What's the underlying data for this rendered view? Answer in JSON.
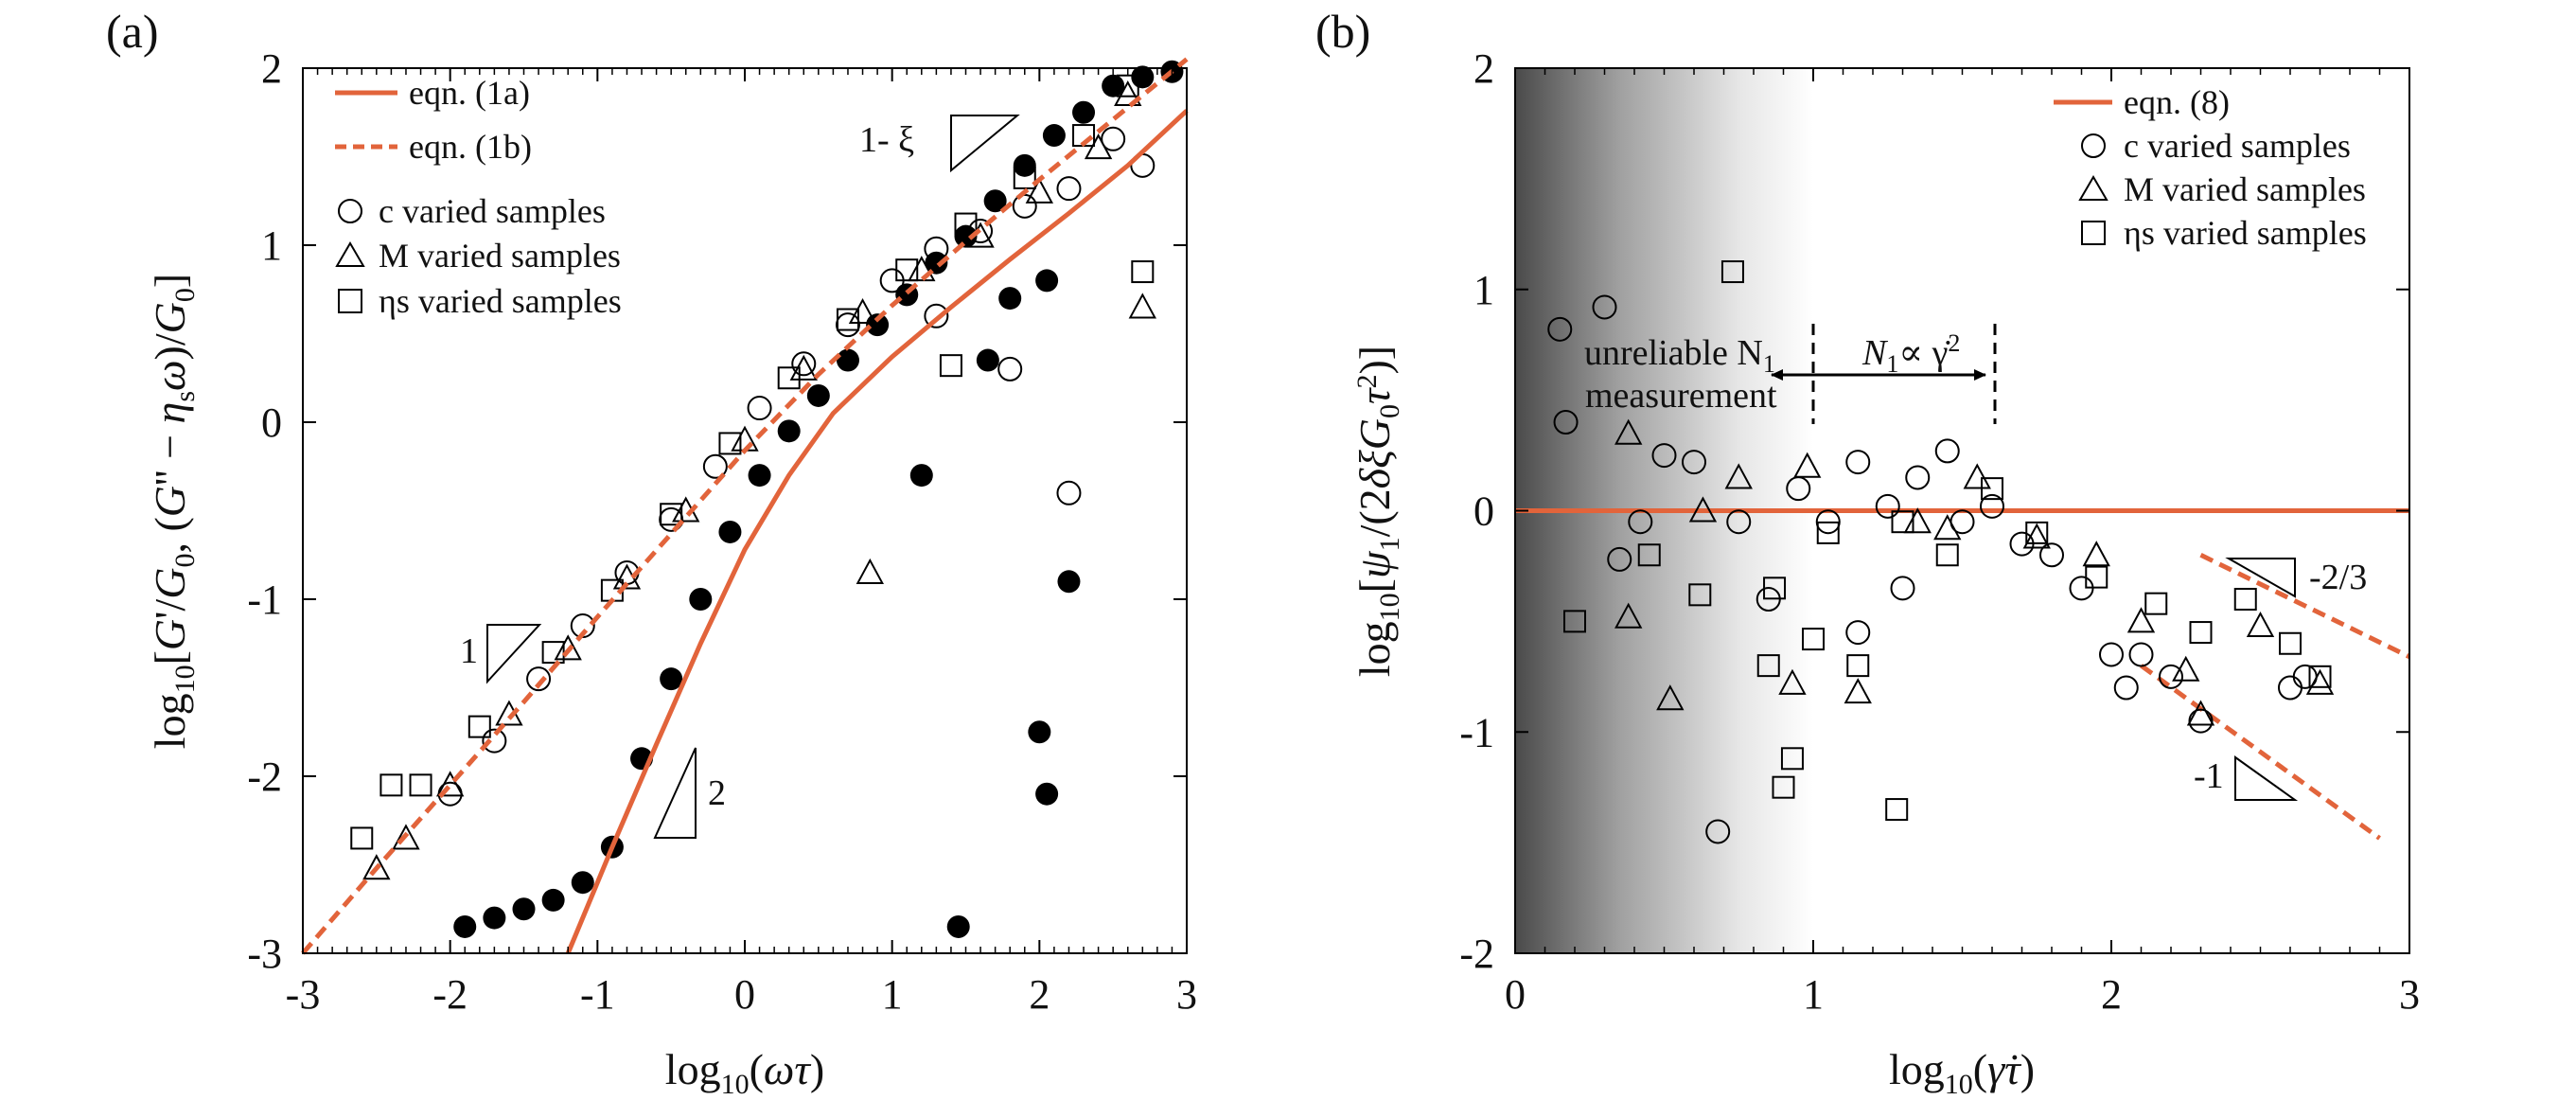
{
  "figure_labels": {
    "a": "(a)",
    "b": "(b)"
  },
  "colors": {
    "model": "#E2643B",
    "marker": "#000000",
    "background": "#ffffff"
  },
  "chart_data": [
    {
      "panel": "(a)",
      "type": "scatter",
      "title": "",
      "xlabel": "log10(ωτ)",
      "ylabel": "log10[G'/G0, (G'' − ηsω)/G0]",
      "xlim": [
        -3,
        3
      ],
      "ylim": [
        -3,
        2
      ],
      "xticks": [
        "-3",
        "-2",
        "-1",
        "0",
        "1",
        "2",
        "3"
      ],
      "yticks": [
        "-3",
        "-2",
        "-1",
        "0",
        "1",
        "2"
      ],
      "legend": {
        "placement": "top-left",
        "entries": [
          "eqn. (1a)",
          "eqn. (1b)",
          "c varied samples",
          "M varied samples",
          "ηs varied samples"
        ]
      },
      "annotations": {
        "slope_top": "1- ξ",
        "slope_one": "1",
        "slope_two": "2"
      },
      "series": [
        {
          "name": "eqn. (1a)",
          "kind": "model-line",
          "style": "solid",
          "x": [
            -1.2,
            -0.9,
            -0.6,
            -0.3,
            0.0,
            0.3,
            0.6,
            1.0,
            1.4,
            1.8,
            2.2,
            2.6,
            3.0
          ],
          "y": [
            -3.0,
            -2.4,
            -1.82,
            -1.25,
            -0.72,
            -0.3,
            0.05,
            0.37,
            0.65,
            0.92,
            1.18,
            1.45,
            1.76
          ]
        },
        {
          "name": "eqn. (1b)",
          "kind": "model-line",
          "style": "dashed",
          "x": [
            -3.0,
            -2.5,
            -2.0,
            -1.5,
            -1.0,
            -0.5,
            0.0,
            0.5,
            1.0,
            1.5,
            2.0,
            2.5,
            3.0
          ],
          "y": [
            -3.0,
            -2.52,
            -2.05,
            -1.58,
            -1.1,
            -0.63,
            -0.16,
            0.27,
            0.66,
            1.02,
            1.37,
            1.71,
            2.05
          ]
        },
        {
          "name": "c varied samples",
          "marker": "circle",
          "x": [
            -2.0,
            -1.7,
            -1.4,
            -1.1,
            -0.8,
            -0.5,
            -0.2,
            0.1,
            0.4,
            0.7,
            1.0,
            1.3,
            1.6,
            1.9,
            2.2,
            2.5,
            2.7,
            2.2,
            1.8,
            1.3
          ],
          "y": [
            -2.1,
            -1.8,
            -1.45,
            -1.15,
            -0.85,
            -0.55,
            -0.25,
            0.08,
            0.33,
            0.55,
            0.8,
            0.98,
            1.08,
            1.22,
            1.32,
            1.6,
            1.45,
            -0.4,
            0.3,
            0.6
          ]
        },
        {
          "name": "M varied samples",
          "marker": "triangle",
          "x": [
            -2.5,
            -2.3,
            -2.0,
            -1.6,
            -1.2,
            -0.8,
            -0.4,
            0.0,
            0.4,
            0.8,
            1.2,
            1.6,
            2.0,
            2.4,
            2.6,
            0.85,
            2.7
          ],
          "y": [
            -2.52,
            -2.35,
            -2.05,
            -1.65,
            -1.28,
            -0.88,
            -0.5,
            -0.1,
            0.3,
            0.62,
            0.86,
            1.05,
            1.3,
            1.55,
            1.85,
            -0.85,
            0.65
          ]
        },
        {
          "name": "ηs varied samples",
          "marker": "square",
          "x": [
            -2.6,
            -2.4,
            -2.2,
            -1.8,
            -1.3,
            -0.9,
            -0.5,
            -0.1,
            0.3,
            0.7,
            1.1,
            1.5,
            1.9,
            2.3,
            2.6,
            1.4,
            2.7
          ],
          "y": [
            -2.35,
            -2.05,
            -2.05,
            -1.72,
            -1.3,
            -0.95,
            -0.52,
            -0.12,
            0.25,
            0.58,
            0.86,
            1.12,
            1.38,
            1.62,
            1.9,
            0.32,
            0.85
          ]
        },
        {
          "name": "filled (G')",
          "marker": "filled",
          "x": [
            -1.9,
            -1.7,
            -1.5,
            -1.3,
            -1.1,
            -0.9,
            -0.7,
            -0.5,
            -0.3,
            -0.1,
            0.1,
            0.3,
            0.5,
            0.7,
            0.9,
            1.1,
            1.3,
            1.5,
            1.7,
            1.9,
            2.1,
            2.3,
            2.5,
            2.7,
            2.9,
            1.2,
            1.45,
            2.0,
            2.05,
            2.2,
            2.05,
            1.8,
            1.65
          ],
          "y": [
            -2.85,
            -2.8,
            -2.75,
            -2.7,
            -2.6,
            -2.4,
            -1.9,
            -1.45,
            -1.0,
            -0.62,
            -0.3,
            -0.05,
            0.15,
            0.35,
            0.55,
            0.72,
            0.9,
            1.05,
            1.25,
            1.45,
            1.62,
            1.75,
            1.9,
            1.95,
            1.98,
            -0.3,
            -2.85,
            -1.75,
            -2.1,
            -0.9,
            0.8,
            0.7,
            0.35
          ]
        }
      ]
    },
    {
      "panel": "(b)",
      "type": "scatter",
      "title": "",
      "xlabel": "log10(γ̇τ)",
      "ylabel": "log10[ψ1/(2δξG0τ²)]",
      "xlim": [
        0,
        3
      ],
      "ylim": [
        -2,
        2
      ],
      "xticks": [
        "0",
        "1",
        "2",
        "3"
      ],
      "yticks": [
        "-2",
        "-1",
        "0",
        "1",
        "2"
      ],
      "legend": {
        "placement": "top-right",
        "entries": [
          "eqn. (8)",
          "c varied samples",
          "M varied samples",
          "ηs varied samples"
        ]
      },
      "annotations": {
        "unreliable_line1": "unreliable N",
        "unreliable_sub": "1",
        "unreliable_line2": "measurement",
        "n1_label": "N",
        "n1_sub": "1",
        "n1_rest": "∝ γ̇",
        "n1_sup": "2",
        "slope_minus_two_thirds": "-2/3",
        "slope_minus_one": "-1"
      },
      "shaded_region": {
        "x_from": 0.0,
        "x_to": 1.0,
        "meaning": "unreliable N1 measurement"
      },
      "series": [
        {
          "name": "eqn. (8)",
          "kind": "model-line",
          "style": "solid",
          "x": [
            0,
            3
          ],
          "y": [
            0,
            0
          ]
        },
        {
          "name": "slope -2/3",
          "kind": "guide-line",
          "style": "dashed",
          "x": [
            2.3,
            3.0
          ],
          "y": [
            -0.2,
            -0.66
          ]
        },
        {
          "name": "slope -1",
          "kind": "guide-line",
          "style": "dashed",
          "x": [
            2.1,
            2.9
          ],
          "y": [
            -0.7,
            -1.48
          ]
        },
        {
          "name": "c varied samples",
          "marker": "circle",
          "x": [
            0.15,
            0.17,
            0.3,
            0.35,
            0.42,
            0.5,
            0.6,
            0.68,
            0.75,
            0.85,
            0.95,
            1.05,
            1.15,
            1.25,
            1.35,
            1.45,
            1.5,
            1.6,
            1.7,
            1.8,
            1.9,
            2.0,
            2.05,
            2.1,
            2.2,
            2.3,
            2.6,
            2.65,
            1.3,
            1.15
          ],
          "y": [
            0.82,
            0.4,
            0.92,
            -0.22,
            -0.05,
            0.25,
            0.22,
            -1.45,
            -0.05,
            -0.4,
            0.1,
            -0.05,
            0.22,
            0.02,
            0.15,
            0.27,
            -0.05,
            0.02,
            -0.15,
            -0.2,
            -0.35,
            -0.65,
            -0.8,
            -0.65,
            -0.75,
            -0.95,
            -0.8,
            -0.75,
            -0.35,
            -0.55
          ]
        },
        {
          "name": "M varied samples",
          "marker": "triangle",
          "x": [
            0.38,
            0.38,
            0.52,
            0.63,
            0.75,
            0.93,
            1.15,
            1.35,
            1.55,
            1.75,
            1.95,
            2.1,
            2.25,
            2.3,
            2.5,
            2.7,
            0.98,
            1.45
          ],
          "y": [
            0.35,
            -0.48,
            -0.85,
            0.0,
            0.15,
            -0.78,
            -0.82,
            -0.05,
            0.15,
            -0.12,
            -0.2,
            -0.5,
            -0.72,
            -0.92,
            -0.52,
            -0.78,
            0.2,
            -0.08
          ]
        },
        {
          "name": "ηs varied samples",
          "marker": "square",
          "x": [
            0.2,
            0.45,
            0.62,
            0.73,
            0.85,
            0.87,
            0.9,
            0.93,
            1.0,
            1.05,
            1.15,
            1.3,
            1.45,
            1.6,
            1.75,
            1.95,
            2.15,
            2.3,
            2.45,
            2.6,
            2.7,
            1.28
          ],
          "y": [
            -0.5,
            -0.2,
            -0.38,
            1.08,
            -0.7,
            -0.35,
            -1.25,
            -1.12,
            -0.58,
            -0.1,
            -0.7,
            -0.05,
            -0.2,
            0.1,
            -0.1,
            -0.3,
            -0.42,
            -0.55,
            -0.4,
            -0.6,
            -0.75,
            -1.35
          ]
        }
      ]
    }
  ]
}
